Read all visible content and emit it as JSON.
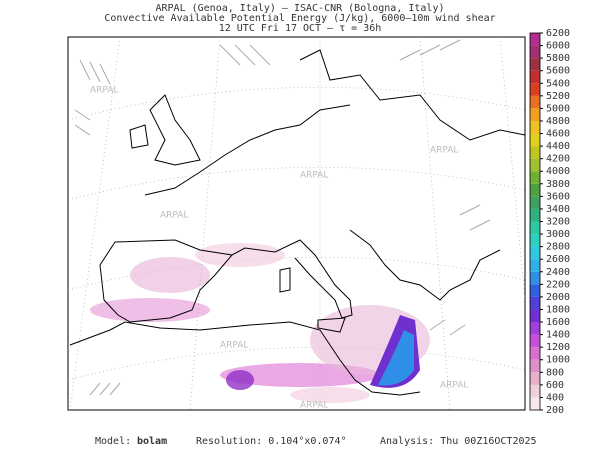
{
  "header": {
    "line1": "ARPAL (Genoa, Italy)  –  ISAC-CNR (Bologna, Italy)",
    "line2": "Convective Available Potential Energy (J/kg), 6000–10m wind shear",
    "line3": "12 UTC Fri 17 OCT  –  τ = 36h"
  },
  "watermark": "ARPAL",
  "colorbar": {
    "ticks": [
      200,
      400,
      600,
      800,
      1000,
      1200,
      1400,
      1600,
      1800,
      2000,
      2200,
      2400,
      2600,
      2800,
      3000,
      3200,
      3400,
      3600,
      3800,
      4000,
      4200,
      4400,
      4600,
      4800,
      5000,
      5200,
      5400,
      5600,
      5800,
      6000,
      6200
    ],
    "colors": [
      "#f8e8ee",
      "#f0d0dc",
      "#e8b0c8",
      "#e090c8",
      "#d870d0",
      "#c850d8",
      "#a040d8",
      "#7030d0",
      "#5040d8",
      "#3060e0",
      "#3090e8",
      "#30b0e8",
      "#30c8e0",
      "#30d0c0",
      "#30c8a0",
      "#30b080",
      "#40a060",
      "#50a040",
      "#70b030",
      "#a0c030",
      "#c0c820",
      "#e0d020",
      "#f0c020",
      "#f0a020",
      "#e87020",
      "#d84020",
      "#c03030",
      "#a03040",
      "#a03070",
      "#b03090"
    ]
  },
  "footer": {
    "model_label": "Model:",
    "model": "bolam",
    "resolution": "Resolution: 0.104°x0.074°",
    "analysis": "Analysis: Thu 00Z16OCT2025"
  }
}
